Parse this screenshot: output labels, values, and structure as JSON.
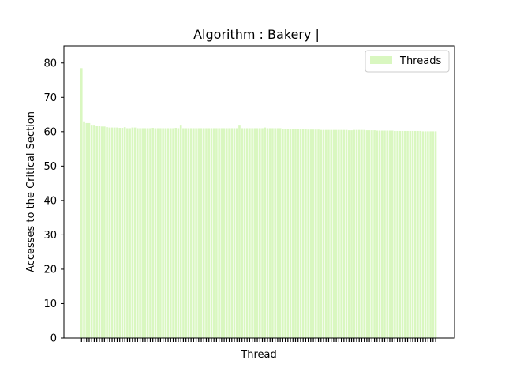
{
  "chart_data": {
    "type": "bar",
    "title": "Algorithm : Bakery |",
    "xlabel": "Thread",
    "ylabel": "Accesses to the Critical Section",
    "ylim": [
      0,
      85
    ],
    "yticks": [
      0,
      10,
      20,
      30,
      40,
      50,
      60,
      70,
      80
    ],
    "grid": false,
    "legend_position": "top-right",
    "series": [
      {
        "name": "Threads",
        "color": "#d9f7c0",
        "values": [
          78.5,
          63.0,
          62.5,
          62.5,
          62.0,
          62.0,
          61.8,
          61.6,
          61.5,
          61.5,
          61.3,
          61.2,
          61.2,
          61.2,
          61.2,
          61.1,
          61.1,
          61.3,
          61.0,
          61.0,
          61.2,
          61.2,
          61.0,
          61.0,
          61.0,
          61.0,
          61.0,
          61.0,
          61.1,
          61.0,
          61.0,
          61.0,
          61.0,
          61.0,
          61.0,
          61.0,
          61.0,
          61.1,
          61.0,
          62.0,
          61.0,
          61.0,
          61.0,
          61.0,
          61.0,
          61.0,
          61.0,
          61.0,
          61.0,
          61.0,
          61.0,
          61.0,
          61.0,
          61.0,
          61.0,
          61.0,
          61.0,
          61.0,
          61.0,
          61.0,
          61.0,
          61.0,
          62.0,
          61.0,
          61.0,
          61.0,
          61.0,
          61.0,
          61.0,
          61.0,
          61.0,
          61.0,
          61.2,
          61.0,
          61.0,
          61.0,
          61.0,
          61.0,
          61.0,
          60.8,
          60.8,
          60.8,
          60.8,
          60.8,
          60.8,
          60.8,
          60.8,
          60.7,
          60.7,
          60.6,
          60.6,
          60.6,
          60.6,
          60.6,
          60.5,
          60.5,
          60.5,
          60.5,
          60.5,
          60.5,
          60.5,
          60.5,
          60.5,
          60.5,
          60.5,
          60.4,
          60.4,
          60.5,
          60.5,
          60.5,
          60.5,
          60.5,
          60.4,
          60.4,
          60.4,
          60.4,
          60.3,
          60.3,
          60.3,
          60.3,
          60.3,
          60.3,
          60.3,
          60.2,
          60.2,
          60.2,
          60.2,
          60.2,
          60.2,
          60.2,
          60.2,
          60.2,
          60.2,
          60.2,
          60.1,
          60.1,
          60.1,
          60.1,
          60.1,
          60.1
        ]
      }
    ]
  }
}
